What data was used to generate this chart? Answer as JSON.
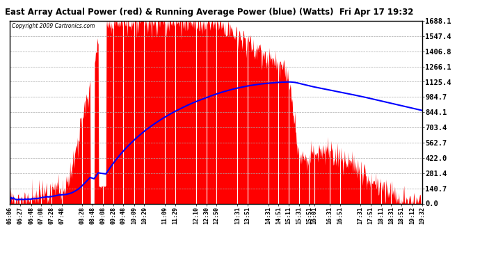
{
  "title": "East Array Actual Power (red) & Running Average Power (blue) (Watts)  Fri Apr 17 19:32",
  "copyright": "Copyright 2009 Cartronics.com",
  "ymax": 1688.1,
  "yticks": [
    0.0,
    140.7,
    281.4,
    422.0,
    562.7,
    703.4,
    844.1,
    984.7,
    1125.4,
    1266.1,
    1406.8,
    1547.4,
    1688.1
  ],
  "background_color": "#ffffff",
  "fill_color": "#ff0000",
  "line_color": "#0000ff",
  "grid_color": "#aaaaaa",
  "xtick_labels": [
    "06:06",
    "06:27",
    "06:48",
    "07:08",
    "07:28",
    "07:48",
    "08:28",
    "08:48",
    "09:08",
    "09:28",
    "09:48",
    "10:09",
    "10:29",
    "11:09",
    "11:29",
    "12:10",
    "12:30",
    "12:50",
    "13:31",
    "13:51",
    "14:31",
    "14:51",
    "15:11",
    "15:31",
    "15:51",
    "16:01",
    "16:31",
    "16:51",
    "17:31",
    "17:51",
    "18:11",
    "18:31",
    "18:51",
    "19:12",
    "19:32"
  ],
  "start_time": "06:06",
  "end_time": "19:32"
}
